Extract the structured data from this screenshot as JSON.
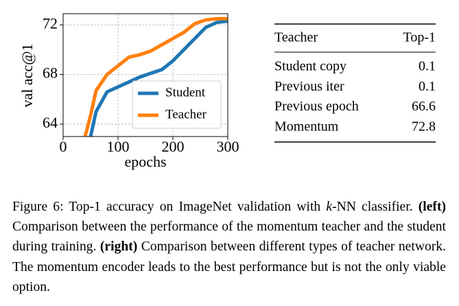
{
  "chart_data": {
    "type": "line",
    "x_label": "epochs",
    "y_label": "val acc@1",
    "x": [
      40,
      50,
      60,
      80,
      100,
      120,
      140,
      160,
      180,
      200,
      220,
      240,
      260,
      280,
      300
    ],
    "series": [
      {
        "name": "Student",
        "color": "#1f77b4",
        "values": [
          null,
          63.0,
          65.0,
          66.6,
          67.0,
          67.4,
          67.8,
          68.1,
          68.4,
          69.1,
          70.0,
          70.9,
          71.8,
          72.2,
          72.3
        ]
      },
      {
        "name": "Teacher",
        "color": "#ff7f0e",
        "values": [
          63.0,
          64.7,
          66.7,
          68.0,
          68.7,
          69.4,
          69.6,
          69.9,
          70.4,
          70.9,
          71.4,
          72.1,
          72.4,
          72.5,
          72.5
        ]
      }
    ],
    "xlim": [
      0,
      300
    ],
    "xticks": [
      0,
      100,
      200,
      300
    ],
    "ylim": [
      63,
      72.9
    ],
    "yticks": [
      64,
      68,
      72
    ],
    "grid": true,
    "legend": "lower right"
  },
  "table": {
    "header": [
      "Teacher",
      "Top-1"
    ],
    "rows": [
      [
        "Student copy",
        0.1
      ],
      [
        "Previous iter",
        0.1
      ],
      [
        "Previous epoch",
        66.6
      ],
      [
        "Momentum",
        72.8
      ]
    ]
  },
  "caption": [
    "Figure 6: Top-1 accuracy on ImageNet validation with ",
    "k",
    "-NN classifier. ",
    "(left)",
    " Comparison between the performance of the momentum teacher and the student during training. ",
    "(right)",
    " Comparison between different types of teacher network. The momentum encoder leads to the best performance but is not the only viable option."
  ]
}
